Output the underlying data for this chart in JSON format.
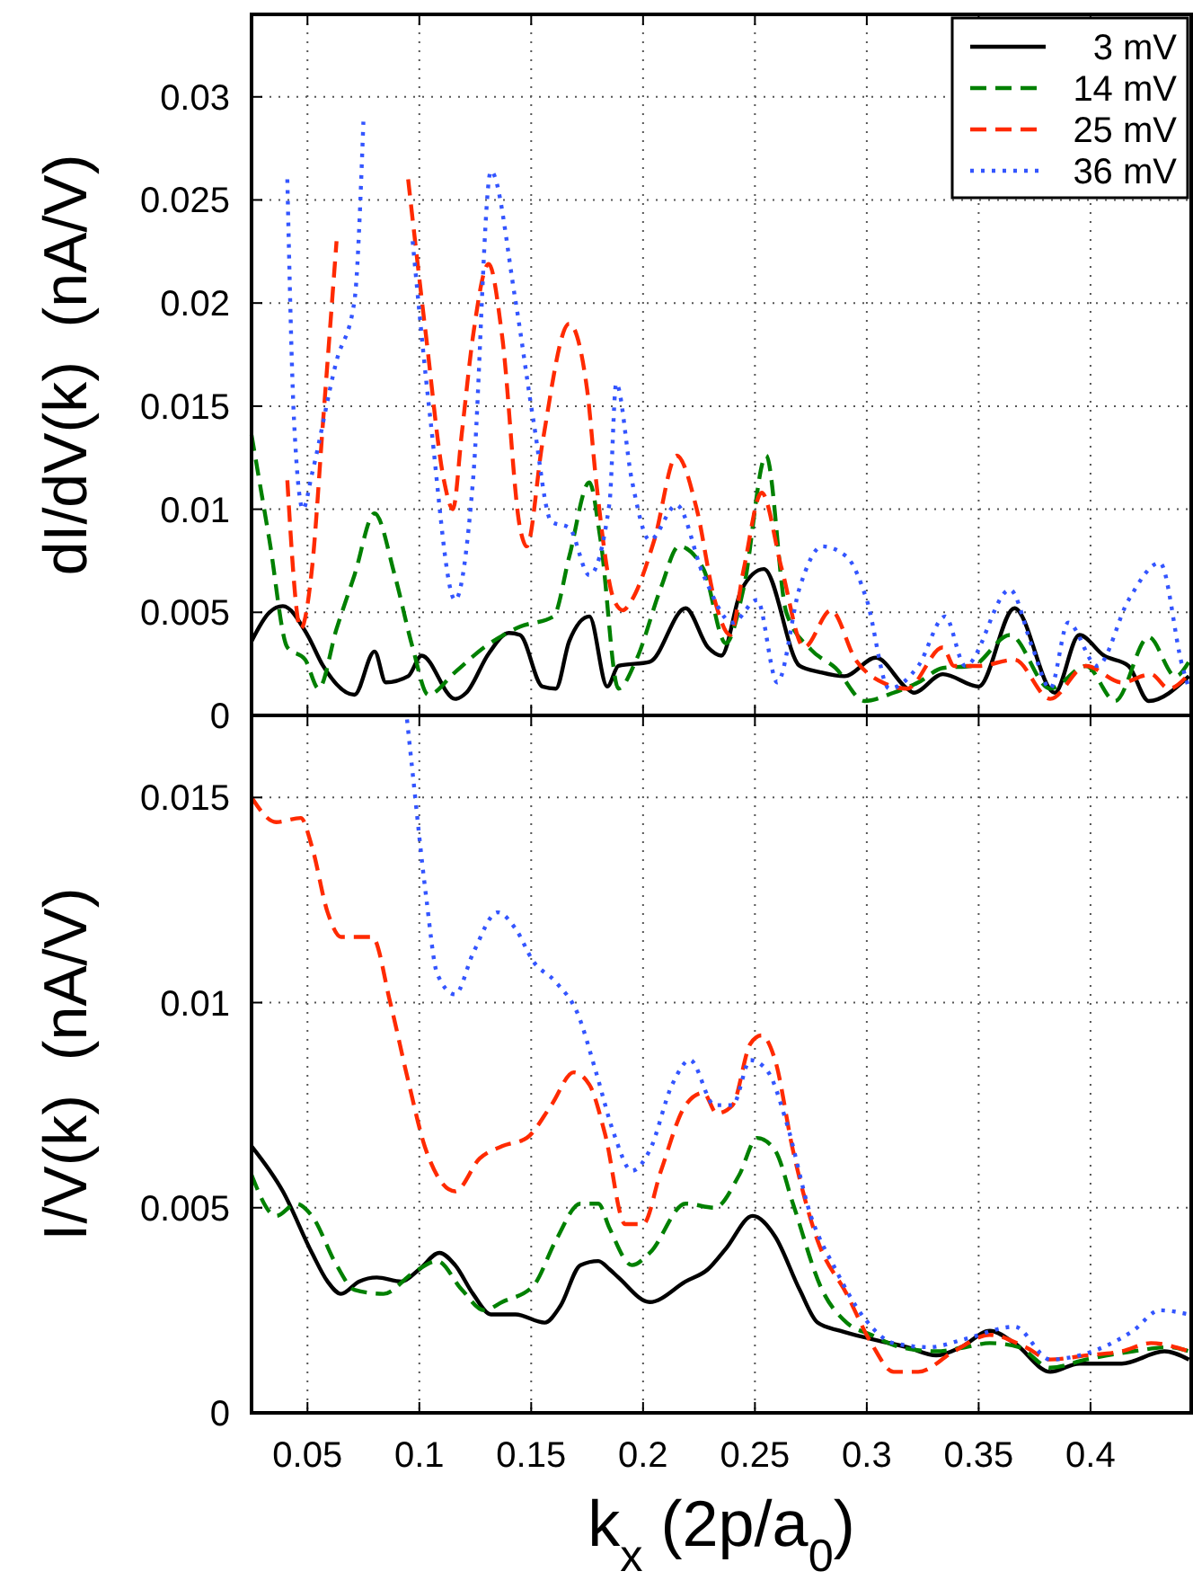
{
  "chart_data": [
    {
      "type": "line",
      "ylabel": "dI/dV(k)  (nA/V)",
      "xlim": [
        0.025,
        0.445
      ],
      "xticks": [
        0.05,
        0.1,
        0.15,
        0.2,
        0.25,
        0.3,
        0.35,
        0.4
      ],
      "ylim": [
        0,
        0.034
      ],
      "yticks": [
        0,
        0.005,
        0.01,
        0.015,
        0.02,
        0.025,
        0.03
      ],
      "tick_labels": "y",
      "grid": true,
      "legend": "top right",
      "series": [
        {
          "name": "3 mV",
          "color": "#000000",
          "line_style": "solid",
          "x": [
            0.025,
            0.033,
            0.039,
            0.05,
            0.057,
            0.071,
            0.08,
            0.085,
            0.095,
            0.101,
            0.116,
            0.121,
            0.131,
            0.14,
            0.145,
            0.155,
            0.161,
            0.167,
            0.176,
            0.184,
            0.189,
            0.203,
            0.219,
            0.229,
            0.235,
            0.244,
            0.254,
            0.27,
            0.279,
            0.29,
            0.304,
            0.318,
            0.321,
            0.334,
            0.35,
            0.366,
            0.384,
            0.395,
            0.406,
            0.417,
            0.426,
            0.444
          ],
          "values": [
            0.0036,
            0.005,
            0.0053,
            0.0039,
            0.0024,
            0.001,
            0.0031,
            0.0016,
            0.0019,
            0.0029,
            0.0008,
            0.0011,
            0.003,
            0.004,
            0.0039,
            0.0014,
            0.0013,
            0.0036,
            0.0048,
            0.0014,
            0.0024,
            0.0026,
            0.0052,
            0.0033,
            0.0029,
            0.0061,
            0.0071,
            0.0024,
            0.0021,
            0.0019,
            0.0028,
            0.0013,
            0.0011,
            0.002,
            0.0014,
            0.0052,
            0.0011,
            0.0039,
            0.0029,
            0.0024,
            0.0007,
            0.0019
          ]
        },
        {
          "name": "14 mV",
          "color": "#008000",
          "line_style": "dashed",
          "x": [
            0.025,
            0.033,
            0.041,
            0.049,
            0.055,
            0.063,
            0.071,
            0.08,
            0.089,
            0.097,
            0.104,
            0.116,
            0.129,
            0.145,
            0.16,
            0.167,
            0.176,
            0.181,
            0.189,
            0.197,
            0.208,
            0.216,
            0.227,
            0.237,
            0.245,
            0.255,
            0.264,
            0.275,
            0.286,
            0.299,
            0.312,
            0.323,
            0.334,
            0.347,
            0.364,
            0.382,
            0.398,
            0.411,
            0.426,
            0.438,
            0.444
          ],
          "values": [
            0.0136,
            0.0085,
            0.0033,
            0.0027,
            0.0013,
            0.0042,
            0.0068,
            0.0098,
            0.0068,
            0.0033,
            0.001,
            0.0021,
            0.0033,
            0.0043,
            0.0048,
            0.0077,
            0.0113,
            0.0085,
            0.0013,
            0.0027,
            0.0062,
            0.0082,
            0.0071,
            0.0035,
            0.0062,
            0.0126,
            0.005,
            0.0032,
            0.0023,
            0.0007,
            0.0011,
            0.0016,
            0.0023,
            0.0024,
            0.0039,
            0.0013,
            0.0024,
            0.0007,
            0.0038,
            0.0019,
            0.0026
          ]
        },
        {
          "name": "25 mV",
          "color": "#ff2a00",
          "line_style": "dashed",
          "x": [
            0.041,
            0.047,
            0.052,
            0.057,
            0.063,
            0.076,
            0.095,
            0.103,
            0.111,
            0.115,
            0.119,
            0.124,
            0.131,
            0.137,
            0.145,
            0.148,
            0.155,
            0.167,
            0.175,
            0.179,
            0.187,
            0.191,
            0.195,
            0.205,
            0.215,
            0.224,
            0.232,
            0.239,
            0.245,
            0.253,
            0.262,
            0.272,
            0.284,
            0.295,
            0.307,
            0.318,
            0.334,
            0.339,
            0.35,
            0.366,
            0.382,
            0.398,
            0.414,
            0.427,
            0.435,
            0.444
          ],
          "values": [
            0.0114,
            0.0042,
            0.0071,
            0.0143,
            0.023,
            null,
            0.026,
            0.0184,
            0.0114,
            0.01,
            0.0137,
            0.0184,
            0.0219,
            0.0184,
            0.0091,
            0.0082,
            0.0132,
            0.019,
            0.0158,
            0.0114,
            0.0056,
            0.0051,
            0.0056,
            0.0085,
            0.0126,
            0.01,
            0.0056,
            0.0039,
            0.0071,
            0.0108,
            0.0071,
            0.0033,
            0.0051,
            0.0027,
            0.0016,
            0.0013,
            0.0033,
            0.0024,
            0.0024,
            0.0027,
            0.0008,
            0.0024,
            0.0016,
            0.002,
            0.0013,
            0.002
          ]
        },
        {
          "name": "36 mV",
          "color": "#3355ff",
          "line_style": "dotted",
          "x": [
            0.041,
            0.044,
            0.048,
            0.052,
            0.063,
            0.071,
            0.075,
            0.084,
            0.097,
            0.105,
            0.116,
            0.124,
            0.132,
            0.143,
            0.151,
            0.159,
            0.167,
            0.176,
            0.185,
            0.188,
            0.195,
            0.203,
            0.215,
            0.227,
            0.24,
            0.251,
            0.26,
            0.27,
            0.28,
            0.291,
            0.3,
            0.31,
            0.323,
            0.335,
            0.344,
            0.364,
            0.374,
            0.382,
            0.39,
            0.403,
            0.417,
            0.431,
            0.441,
            0.444
          ],
          "values": [
            0.026,
            0.0143,
            0.01,
            0.0117,
            0.0172,
            0.0201,
            0.0288,
            null,
            0.023,
            0.0143,
            0.0056,
            0.0114,
            0.0264,
            0.0201,
            0.0143,
            0.0094,
            0.0091,
            0.0068,
            0.0103,
            0.0161,
            0.0114,
            0.0085,
            0.0102,
            0.0068,
            0.0045,
            0.0056,
            0.0016,
            0.0062,
            0.0082,
            0.0077,
            0.0056,
            0.0013,
            0.0024,
            0.0048,
            0.0024,
            0.0061,
            0.0033,
            0.0013,
            0.0045,
            0.0024,
            0.0056,
            0.0074,
            0.0024,
            0.0013
          ]
        }
      ]
    },
    {
      "type": "line",
      "xlabel": "k$_{x}$ (2p/a$_{0}$)",
      "ylabel": "I/V(k)  (nA/V)",
      "xlim": [
        0.025,
        0.445
      ],
      "xticks": [
        0.05,
        0.1,
        0.15,
        0.2,
        0.25,
        0.3,
        0.35,
        0.4
      ],
      "ylim": [
        0,
        0.017
      ],
      "yticks": [
        0,
        0.005,
        0.01,
        0.015
      ],
      "grid": true,
      "series": [
        {
          "color": "#000000",
          "line_style": "solid",
          "x": [
            0.025,
            0.039,
            0.052,
            0.059,
            0.065,
            0.073,
            0.081,
            0.092,
            0.1,
            0.109,
            0.116,
            0.124,
            0.132,
            0.143,
            0.156,
            0.163,
            0.172,
            0.18,
            0.185,
            0.189,
            0.203,
            0.219,
            0.229,
            0.237,
            0.249,
            0.259,
            0.27,
            0.278,
            0.288,
            0.302,
            0.318,
            0.331,
            0.342,
            0.355,
            0.366,
            0.382,
            0.395,
            0.414,
            0.433,
            0.444
          ],
          "values": [
            0.0065,
            0.0054,
            0.0039,
            0.0032,
            0.0029,
            0.0032,
            0.0033,
            0.0032,
            0.0035,
            0.0039,
            0.0036,
            0.0029,
            0.0024,
            0.0024,
            0.0022,
            0.0026,
            0.0036,
            0.0037,
            0.0035,
            0.0033,
            0.0027,
            0.0032,
            0.0035,
            0.004,
            0.0048,
            0.0043,
            0.003,
            0.0022,
            0.002,
            0.0018,
            0.0016,
            0.0014,
            0.0016,
            0.002,
            0.0017,
            0.001,
            0.0012,
            0.0012,
            0.0015,
            0.0013
          ]
        },
        {
          "color": "#008000",
          "line_style": "dashed",
          "x": [
            0.025,
            0.036,
            0.045,
            0.052,
            0.063,
            0.071,
            0.084,
            0.097,
            0.108,
            0.119,
            0.129,
            0.137,
            0.151,
            0.161,
            0.172,
            0.18,
            0.185,
            0.195,
            0.203,
            0.219,
            0.232,
            0.243,
            0.251,
            0.259,
            0.267,
            0.28,
            0.291,
            0.302,
            0.315,
            0.331,
            0.344,
            0.355,
            0.368,
            0.382,
            0.398,
            0.419,
            0.435,
            0.444
          ],
          "values": [
            0.0058,
            0.0048,
            0.0051,
            0.0048,
            0.0036,
            0.003,
            0.0029,
            0.0034,
            0.0037,
            0.003,
            0.0025,
            0.0027,
            0.0031,
            0.0042,
            0.0051,
            0.0051,
            0.0045,
            0.0036,
            0.0039,
            0.0051,
            0.005,
            0.0058,
            0.0067,
            0.0064,
            0.0051,
            0.003,
            0.0022,
            0.0019,
            0.0016,
            0.0015,
            0.0016,
            0.0017,
            0.0016,
            0.0011,
            0.0013,
            0.0015,
            0.0016,
            0.0015
          ]
        },
        {
          "color": "#ff2a00",
          "line_style": "dashed",
          "x": [
            0.025,
            0.036,
            0.047,
            0.052,
            0.059,
            0.065,
            0.079,
            0.087,
            0.095,
            0.103,
            0.116,
            0.127,
            0.137,
            0.148,
            0.159,
            0.169,
            0.176,
            0.183,
            0.192,
            0.2,
            0.208,
            0.219,
            0.227,
            0.233,
            0.24,
            0.248,
            0.253,
            0.259,
            0.267,
            0.278,
            0.291,
            0.302,
            0.312,
            0.323,
            0.339,
            0.355,
            0.371,
            0.382,
            0.398,
            0.414,
            0.427,
            0.444
          ],
          "values": [
            0.015,
            0.0144,
            0.0145,
            0.0138,
            0.0122,
            0.0116,
            0.0116,
            0.01,
            0.0081,
            0.0064,
            0.0054,
            0.0062,
            0.0065,
            0.0067,
            0.0075,
            0.0083,
            0.008,
            0.0068,
            0.0046,
            0.0046,
            0.0059,
            0.0075,
            0.0078,
            0.0073,
            0.0075,
            0.009,
            0.0092,
            0.0086,
            0.0064,
            0.0042,
            0.0029,
            0.0017,
            0.001,
            0.001,
            0.0015,
            0.0019,
            0.0016,
            0.0013,
            0.0014,
            0.0015,
            0.0017,
            0.0015
          ]
        },
        {
          "color": "#3355ff",
          "line_style": "dotted",
          "x": [
            0.0945,
            0.097,
            0.103,
            0.108,
            0.116,
            0.124,
            0.135,
            0.143,
            0.151,
            0.161,
            0.171,
            0.179,
            0.187,
            0.195,
            0.203,
            0.213,
            0.221,
            0.232,
            0.24,
            0.248,
            0.256,
            0.264,
            0.275,
            0.286,
            0.299,
            0.312,
            0.328,
            0.344,
            0.366,
            0.382,
            0.395,
            0.419,
            0.431,
            0.444
          ],
          "values": [
            0.0169,
            0.0156,
            0.0126,
            0.0107,
            0.0102,
            0.0112,
            0.0122,
            0.0118,
            0.011,
            0.0105,
            0.0097,
            0.0083,
            0.0068,
            0.0059,
            0.0064,
            0.008,
            0.0086,
            0.0075,
            0.0075,
            0.0086,
            0.0083,
            0.0071,
            0.0048,
            0.0035,
            0.0023,
            0.0017,
            0.0016,
            0.0018,
            0.0021,
            0.0013,
            0.0014,
            0.002,
            0.0025,
            0.0024
          ]
        }
      ]
    }
  ]
}
